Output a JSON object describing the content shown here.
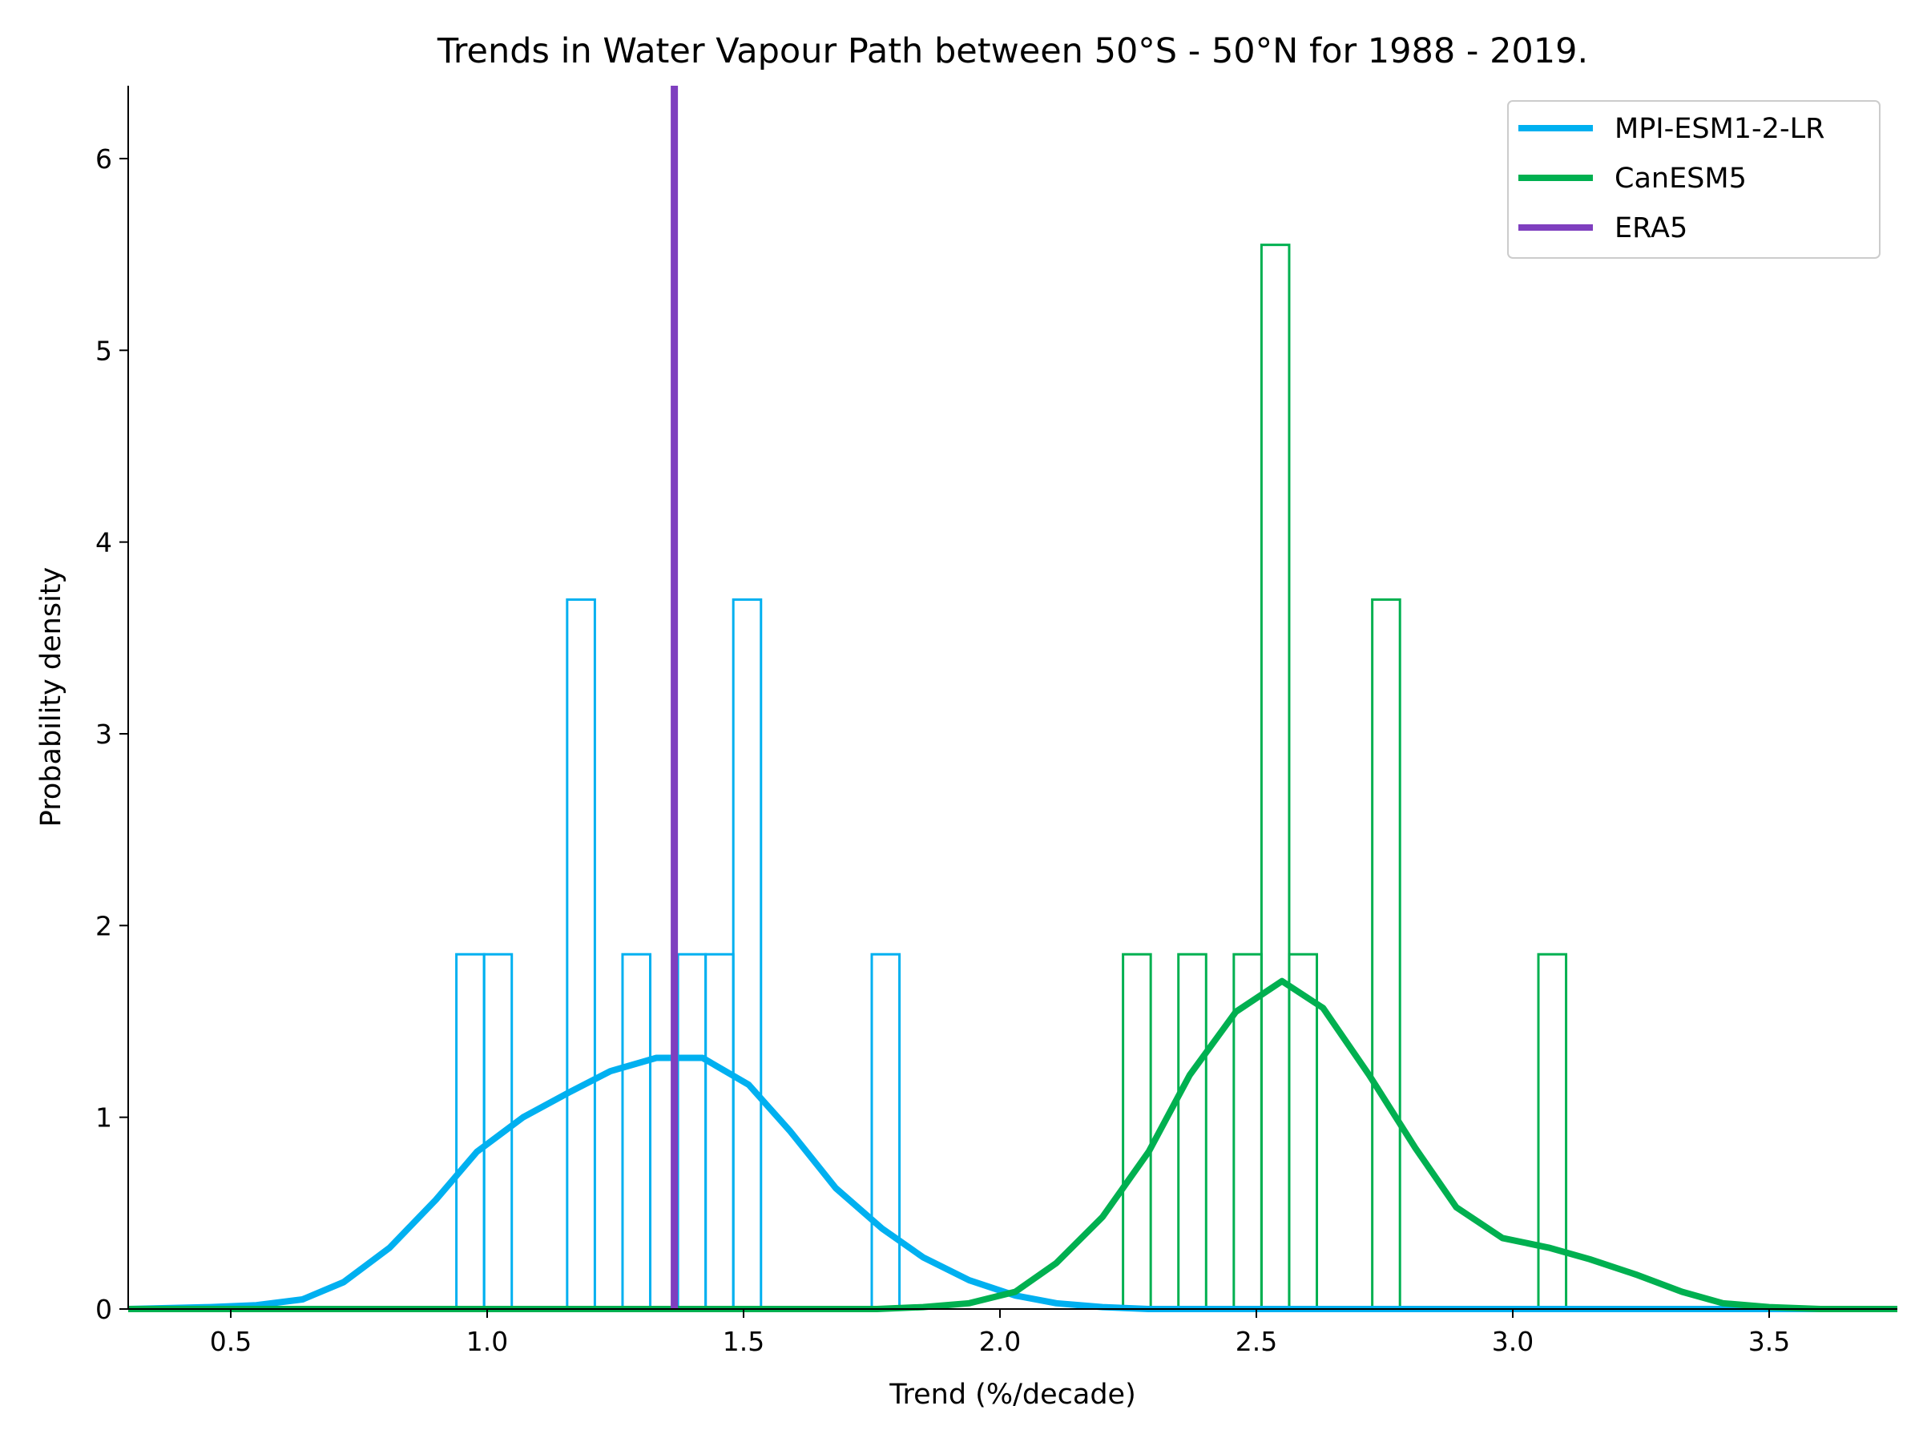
{
  "chart_data": {
    "type": "histogram",
    "title": "Trends in Water Vapour Path between 50°S - 50°N for 1988 - 2019.",
    "xlabel": "Trend (%/decade)",
    "ylabel": "Probability density",
    "xlim": [
      0.3,
      3.75
    ],
    "ylim": [
      0,
      6.38
    ],
    "xticks": [
      "0.5",
      "1.0",
      "1.5",
      "2.0",
      "2.5",
      "3.0",
      "3.5"
    ],
    "yticks": [
      "0",
      "1",
      "2",
      "3",
      "4",
      "5",
      "6"
    ],
    "grid": false,
    "legend_position": "top-right",
    "bin_width": 0.054,
    "series": [
      {
        "name": "MPI-ESM1-2-LR",
        "color": "#00b0f0",
        "histogram": [
          {
            "left": 0.94,
            "density": 1.85
          },
          {
            "left": 0.994,
            "density": 1.85
          },
          {
            "left": 1.156,
            "density": 3.7
          },
          {
            "left": 1.264,
            "density": 1.85
          },
          {
            "left": 1.372,
            "density": 1.85
          },
          {
            "left": 1.426,
            "density": 1.85
          },
          {
            "left": 1.48,
            "density": 3.7
          },
          {
            "left": 1.75,
            "density": 1.85
          }
        ],
        "kde": {
          "x": [
            0.3,
            0.46,
            0.55,
            0.64,
            0.72,
            0.81,
            0.9,
            0.98,
            1.07,
            1.16,
            1.24,
            1.33,
            1.42,
            1.51,
            1.59,
            1.68,
            1.77,
            1.85,
            1.94,
            2.03,
            2.11,
            2.2,
            2.29,
            2.5,
            3.0,
            3.75
          ],
          "y": [
            0.0,
            0.01,
            0.02,
            0.05,
            0.14,
            0.32,
            0.57,
            0.82,
            1.0,
            1.13,
            1.24,
            1.31,
            1.31,
            1.17,
            0.93,
            0.63,
            0.42,
            0.27,
            0.15,
            0.07,
            0.03,
            0.01,
            0.0,
            0.0,
            0.0,
            0.0
          ]
        }
      },
      {
        "name": "CanESM5",
        "color": "#00b050",
        "histogram": [
          {
            "left": 2.24,
            "density": 1.85
          },
          {
            "left": 2.348,
            "density": 1.85
          },
          {
            "left": 2.456,
            "density": 1.85
          },
          {
            "left": 2.51,
            "density": 5.55
          },
          {
            "left": 2.564,
            "density": 1.85
          },
          {
            "left": 2.726,
            "density": 3.7
          },
          {
            "left": 3.05,
            "density": 1.85
          }
        ],
        "kde": {
          "x": [
            0.3,
            1.5,
            1.76,
            1.85,
            1.94,
            2.03,
            2.11,
            2.2,
            2.29,
            2.37,
            2.46,
            2.55,
            2.63,
            2.72,
            2.81,
            2.89,
            2.98,
            3.07,
            3.15,
            3.24,
            3.33,
            3.41,
            3.5,
            3.6,
            3.75
          ],
          "y": [
            0.0,
            0.0,
            0.0,
            0.01,
            0.03,
            0.09,
            0.24,
            0.48,
            0.82,
            1.22,
            1.55,
            1.71,
            1.57,
            1.22,
            0.84,
            0.53,
            0.37,
            0.32,
            0.26,
            0.18,
            0.09,
            0.03,
            0.01,
            0.0,
            0.0
          ]
        }
      },
      {
        "name": "ERA5",
        "color": "#7f3fbf",
        "vline": 1.365
      }
    ]
  }
}
